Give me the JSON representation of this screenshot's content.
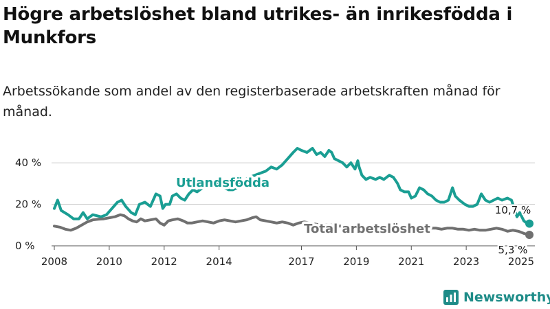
{
  "header": {
    "title": "Högre arbetslöshet bland utrikes- än inrikesfödda i Munkfors",
    "subtitle": "Arbetssökande som andel av den registerbaserade arbetskraften månad för månad."
  },
  "brand": {
    "name": "Newsworthy",
    "icon": "newsworthy-logo-icon",
    "color": "#1e8c88"
  },
  "chart_data": {
    "type": "line",
    "title": "Högre arbetslöshet bland utrikes- än inrikesfödda i Munkfors",
    "subtitle": "Arbetssökande som andel av den registerbaserade arbetskraften månad för månad.",
    "xlabel": "",
    "ylabel": "",
    "xlim": [
      2007.9,
      2025.5
    ],
    "ylim": [
      0,
      45
    ],
    "x_ticks": [
      "2008",
      "2010",
      "2012",
      "2014",
      "2017",
      "2019",
      "2021",
      "2023",
      "2025"
    ],
    "y_ticks": [
      "0 %",
      "20 %",
      "40 %"
    ],
    "grid": true,
    "series": [
      {
        "name": "Utlandsfödda",
        "color": "#1a9e93",
        "end_label": "10,7 %",
        "points": [
          [
            2008.0,
            18
          ],
          [
            2008.12,
            22
          ],
          [
            2008.25,
            17
          ],
          [
            2008.5,
            15
          ],
          [
            2008.7,
            13
          ],
          [
            2008.9,
            13
          ],
          [
            2009.05,
            16
          ],
          [
            2009.2,
            13
          ],
          [
            2009.4,
            15
          ],
          [
            2009.7,
            14
          ],
          [
            2009.9,
            15
          ],
          [
            2010.1,
            18
          ],
          [
            2010.3,
            21
          ],
          [
            2010.45,
            22
          ],
          [
            2010.6,
            19
          ],
          [
            2010.8,
            16
          ],
          [
            2010.95,
            15
          ],
          [
            2011.1,
            20
          ],
          [
            2011.3,
            21
          ],
          [
            2011.5,
            19
          ],
          [
            2011.7,
            25
          ],
          [
            2011.85,
            24
          ],
          [
            2011.95,
            18
          ],
          [
            2012.05,
            20
          ],
          [
            2012.2,
            20
          ],
          [
            2012.3,
            24
          ],
          [
            2012.45,
            25
          ],
          [
            2012.6,
            23
          ],
          [
            2012.75,
            22
          ],
          [
            2012.9,
            25
          ],
          [
            2013.05,
            27
          ],
          [
            2013.2,
            26
          ],
          [
            2013.4,
            28
          ],
          [
            2013.55,
            29
          ],
          [
            2013.7,
            28
          ],
          [
            2013.85,
            29
          ],
          [
            2014.0,
            30
          ],
          [
            2014.1,
            30
          ],
          [
            2014.2,
            28
          ],
          [
            2014.35,
            27
          ],
          [
            2014.5,
            27
          ],
          [
            2014.65,
            28
          ],
          [
            2014.75,
            30
          ],
          [
            2014.95,
            32
          ],
          [
            2015.1,
            33
          ],
          [
            2015.3,
            34
          ],
          [
            2015.5,
            35
          ],
          [
            2015.7,
            36
          ],
          [
            2015.9,
            38
          ],
          [
            2016.1,
            37
          ],
          [
            2016.3,
            39
          ],
          [
            2016.5,
            42
          ],
          [
            2016.7,
            45
          ],
          [
            2016.85,
            47
          ],
          [
            2017.0,
            46
          ],
          [
            2017.2,
            45
          ],
          [
            2017.4,
            47
          ],
          [
            2017.55,
            44
          ],
          [
            2017.7,
            45
          ],
          [
            2017.85,
            43
          ],
          [
            2018.0,
            46
          ],
          [
            2018.1,
            45
          ],
          [
            2018.2,
            42
          ],
          [
            2018.35,
            41
          ],
          [
            2018.5,
            40
          ],
          [
            2018.65,
            38
          ],
          [
            2018.8,
            40
          ],
          [
            2018.95,
            37
          ],
          [
            2019.05,
            41
          ],
          [
            2019.1,
            38
          ],
          [
            2019.2,
            34
          ],
          [
            2019.35,
            32
          ],
          [
            2019.5,
            33
          ],
          [
            2019.7,
            32
          ],
          [
            2019.85,
            33
          ],
          [
            2020.0,
            32
          ],
          [
            2020.2,
            34
          ],
          [
            2020.35,
            33
          ],
          [
            2020.5,
            30
          ],
          [
            2020.6,
            27
          ],
          [
            2020.75,
            26
          ],
          [
            2020.9,
            26
          ],
          [
            2021.0,
            23
          ],
          [
            2021.15,
            24
          ],
          [
            2021.3,
            28
          ],
          [
            2021.45,
            27
          ],
          [
            2021.6,
            25
          ],
          [
            2021.75,
            24
          ],
          [
            2021.9,
            22
          ],
          [
            2022.05,
            21
          ],
          [
            2022.2,
            21
          ],
          [
            2022.35,
            22
          ],
          [
            2022.5,
            28
          ],
          [
            2022.6,
            24
          ],
          [
            2022.75,
            22
          ],
          [
            2022.95,
            20
          ],
          [
            2023.1,
            19
          ],
          [
            2023.25,
            19
          ],
          [
            2023.4,
            20
          ],
          [
            2023.55,
            25
          ],
          [
            2023.7,
            22
          ],
          [
            2023.85,
            21
          ],
          [
            2024.0,
            22
          ],
          [
            2024.15,
            23
          ],
          [
            2024.3,
            22
          ],
          [
            2024.5,
            23
          ],
          [
            2024.65,
            22
          ],
          [
            2024.75,
            18
          ],
          [
            2024.85,
            14
          ],
          [
            2024.95,
            16
          ],
          [
            2025.1,
            12
          ],
          [
            2025.2,
            11
          ],
          [
            2025.3,
            10.7
          ]
        ]
      },
      {
        "name": "Total arbetslöshet",
        "color": "#707070",
        "end_label": "5,3 %",
        "points": [
          [
            2008.0,
            9.5
          ],
          [
            2008.2,
            9
          ],
          [
            2008.4,
            8
          ],
          [
            2008.6,
            7.5
          ],
          [
            2008.8,
            8.5
          ],
          [
            2009.0,
            10
          ],
          [
            2009.2,
            11.5
          ],
          [
            2009.4,
            12.5
          ],
          [
            2009.6,
            12.8
          ],
          [
            2009.8,
            13
          ],
          [
            2010.0,
            13.5
          ],
          [
            2010.2,
            14
          ],
          [
            2010.4,
            15
          ],
          [
            2010.55,
            14.5
          ],
          [
            2010.7,
            13
          ],
          [
            2010.85,
            12
          ],
          [
            2011.0,
            11.5
          ],
          [
            2011.15,
            13
          ],
          [
            2011.3,
            12
          ],
          [
            2011.5,
            12.5
          ],
          [
            2011.7,
            13
          ],
          [
            2011.85,
            11
          ],
          [
            2012.0,
            10
          ],
          [
            2012.15,
            12
          ],
          [
            2012.3,
            12.5
          ],
          [
            2012.5,
            13
          ],
          [
            2012.7,
            12
          ],
          [
            2012.85,
            11
          ],
          [
            2013.0,
            11
          ],
          [
            2013.2,
            11.5
          ],
          [
            2013.4,
            12
          ],
          [
            2013.6,
            11.5
          ],
          [
            2013.8,
            11
          ],
          [
            2014.0,
            12
          ],
          [
            2014.2,
            12.5
          ],
          [
            2014.4,
            12
          ],
          [
            2014.6,
            11.5
          ],
          [
            2014.8,
            12
          ],
          [
            2015.0,
            12.5
          ],
          [
            2015.2,
            13.5
          ],
          [
            2015.35,
            14
          ],
          [
            2015.5,
            12.5
          ],
          [
            2015.7,
            12
          ],
          [
            2015.9,
            11.5
          ],
          [
            2016.1,
            11
          ],
          [
            2016.3,
            11.5
          ],
          [
            2016.5,
            11
          ],
          [
            2016.7,
            10
          ],
          [
            2016.9,
            11
          ],
          [
            2017.1,
            11.5
          ],
          [
            2017.3,
            11
          ],
          [
            2017.5,
            10.5
          ],
          [
            2017.7,
            10
          ],
          [
            2017.9,
            10
          ],
          [
            2018.1,
            10
          ],
          [
            2018.3,
            9.5
          ],
          [
            2018.5,
            9.5
          ],
          [
            2018.7,
            9
          ],
          [
            2018.9,
            9
          ],
          [
            2019.1,
            9
          ],
          [
            2019.3,
            9
          ],
          [
            2019.5,
            9
          ],
          [
            2019.7,
            9
          ],
          [
            2019.9,
            9
          ],
          [
            2020.1,
            9
          ],
          [
            2020.3,
            9
          ],
          [
            2020.5,
            9.5
          ],
          [
            2020.7,
            9.5
          ],
          [
            2020.9,
            9
          ],
          [
            2021.1,
            9
          ],
          [
            2021.3,
            9
          ],
          [
            2021.5,
            9
          ],
          [
            2021.7,
            8.5
          ],
          [
            2021.9,
            8.5
          ],
          [
            2022.1,
            8
          ],
          [
            2022.3,
            8.5
          ],
          [
            2022.5,
            8.5
          ],
          [
            2022.7,
            8
          ],
          [
            2022.9,
            8
          ],
          [
            2023.1,
            7.5
          ],
          [
            2023.3,
            8
          ],
          [
            2023.5,
            7.5
          ],
          [
            2023.7,
            7.5
          ],
          [
            2023.9,
            8
          ],
          [
            2024.1,
            8.5
          ],
          [
            2024.3,
            8
          ],
          [
            2024.5,
            7
          ],
          [
            2024.7,
            7.5
          ],
          [
            2024.9,
            7
          ],
          [
            2025.1,
            6
          ],
          [
            2025.3,
            5.3
          ]
        ]
      }
    ],
    "annotations": [
      "Utlandsfödda",
      "Total arbetslöshet"
    ]
  }
}
